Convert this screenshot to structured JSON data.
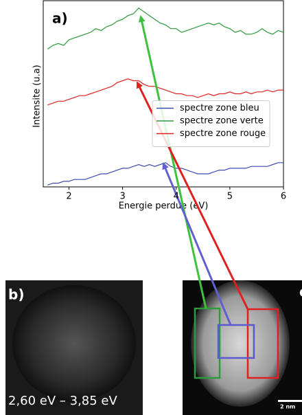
{
  "chart_data": {
    "type": "line",
    "panel_label": "a)",
    "xlabel": "Energie perdue (eV)",
    "ylabel": "Intensite (u.a)",
    "xlim": [
      1.52,
      6.0
    ],
    "ylim": [
      0,
      1
    ],
    "xticks": [
      2,
      3,
      4,
      5,
      6
    ],
    "legend": "center right",
    "x": [
      1.6,
      1.7,
      1.8,
      1.9,
      2.0,
      2.1,
      2.2,
      2.3,
      2.4,
      2.5,
      2.6,
      2.7,
      2.8,
      2.9,
      3.0,
      3.1,
      3.2,
      3.3,
      3.4,
      3.5,
      3.6,
      3.7,
      3.8,
      3.9,
      4.0,
      4.1,
      4.2,
      4.3,
      4.4,
      4.5,
      4.6,
      4.7,
      4.8,
      4.9,
      5.0,
      5.1,
      5.2,
      5.3,
      5.4,
      5.5,
      5.6,
      5.7,
      5.8,
      5.9,
      6.0
    ],
    "series": [
      {
        "name": "spectre zone bleu",
        "color": "#3c4cb0",
        "values": [
          0.01,
          0.02,
          0.02,
          0.03,
          0.03,
          0.04,
          0.04,
          0.04,
          0.05,
          0.06,
          0.07,
          0.07,
          0.08,
          0.09,
          0.1,
          0.1,
          0.11,
          0.12,
          0.11,
          0.12,
          0.11,
          0.12,
          0.13,
          0.11,
          0.1,
          0.1,
          0.09,
          0.08,
          0.07,
          0.07,
          0.07,
          0.08,
          0.09,
          0.09,
          0.1,
          0.1,
          0.1,
          0.1,
          0.11,
          0.11,
          0.11,
          0.11,
          0.12,
          0.13,
          0.13
        ]
      },
      {
        "name": "spectre zone verte",
        "color": "#2e9a3a",
        "values": [
          0.74,
          0.76,
          0.77,
          0.76,
          0.79,
          0.8,
          0.81,
          0.82,
          0.83,
          0.85,
          0.84,
          0.86,
          0.87,
          0.89,
          0.9,
          0.92,
          0.93,
          0.96,
          0.94,
          0.92,
          0.9,
          0.88,
          0.87,
          0.85,
          0.85,
          0.83,
          0.84,
          0.85,
          0.86,
          0.87,
          0.88,
          0.87,
          0.88,
          0.86,
          0.85,
          0.83,
          0.84,
          0.82,
          0.82,
          0.83,
          0.85,
          0.83,
          0.82,
          0.84,
          0.83
        ]
      },
      {
        "name": "spectre zone rouge",
        "color": "#e02020",
        "values": [
          0.44,
          0.45,
          0.46,
          0.46,
          0.47,
          0.48,
          0.49,
          0.49,
          0.5,
          0.51,
          0.52,
          0.53,
          0.54,
          0.56,
          0.57,
          0.58,
          0.57,
          0.57,
          0.55,
          0.54,
          0.54,
          0.53,
          0.52,
          0.51,
          0.5,
          0.5,
          0.49,
          0.49,
          0.48,
          0.49,
          0.5,
          0.49,
          0.5,
          0.5,
          0.51,
          0.5,
          0.5,
          0.51,
          0.5,
          0.51,
          0.51,
          0.52,
          0.51,
          0.52,
          0.52
        ]
      }
    ]
  },
  "image_b": {
    "label": "b)",
    "caption": "2,60 eV – 3,85 eV"
  },
  "image_c": {
    "label": "c",
    "scale": "2 nm"
  }
}
